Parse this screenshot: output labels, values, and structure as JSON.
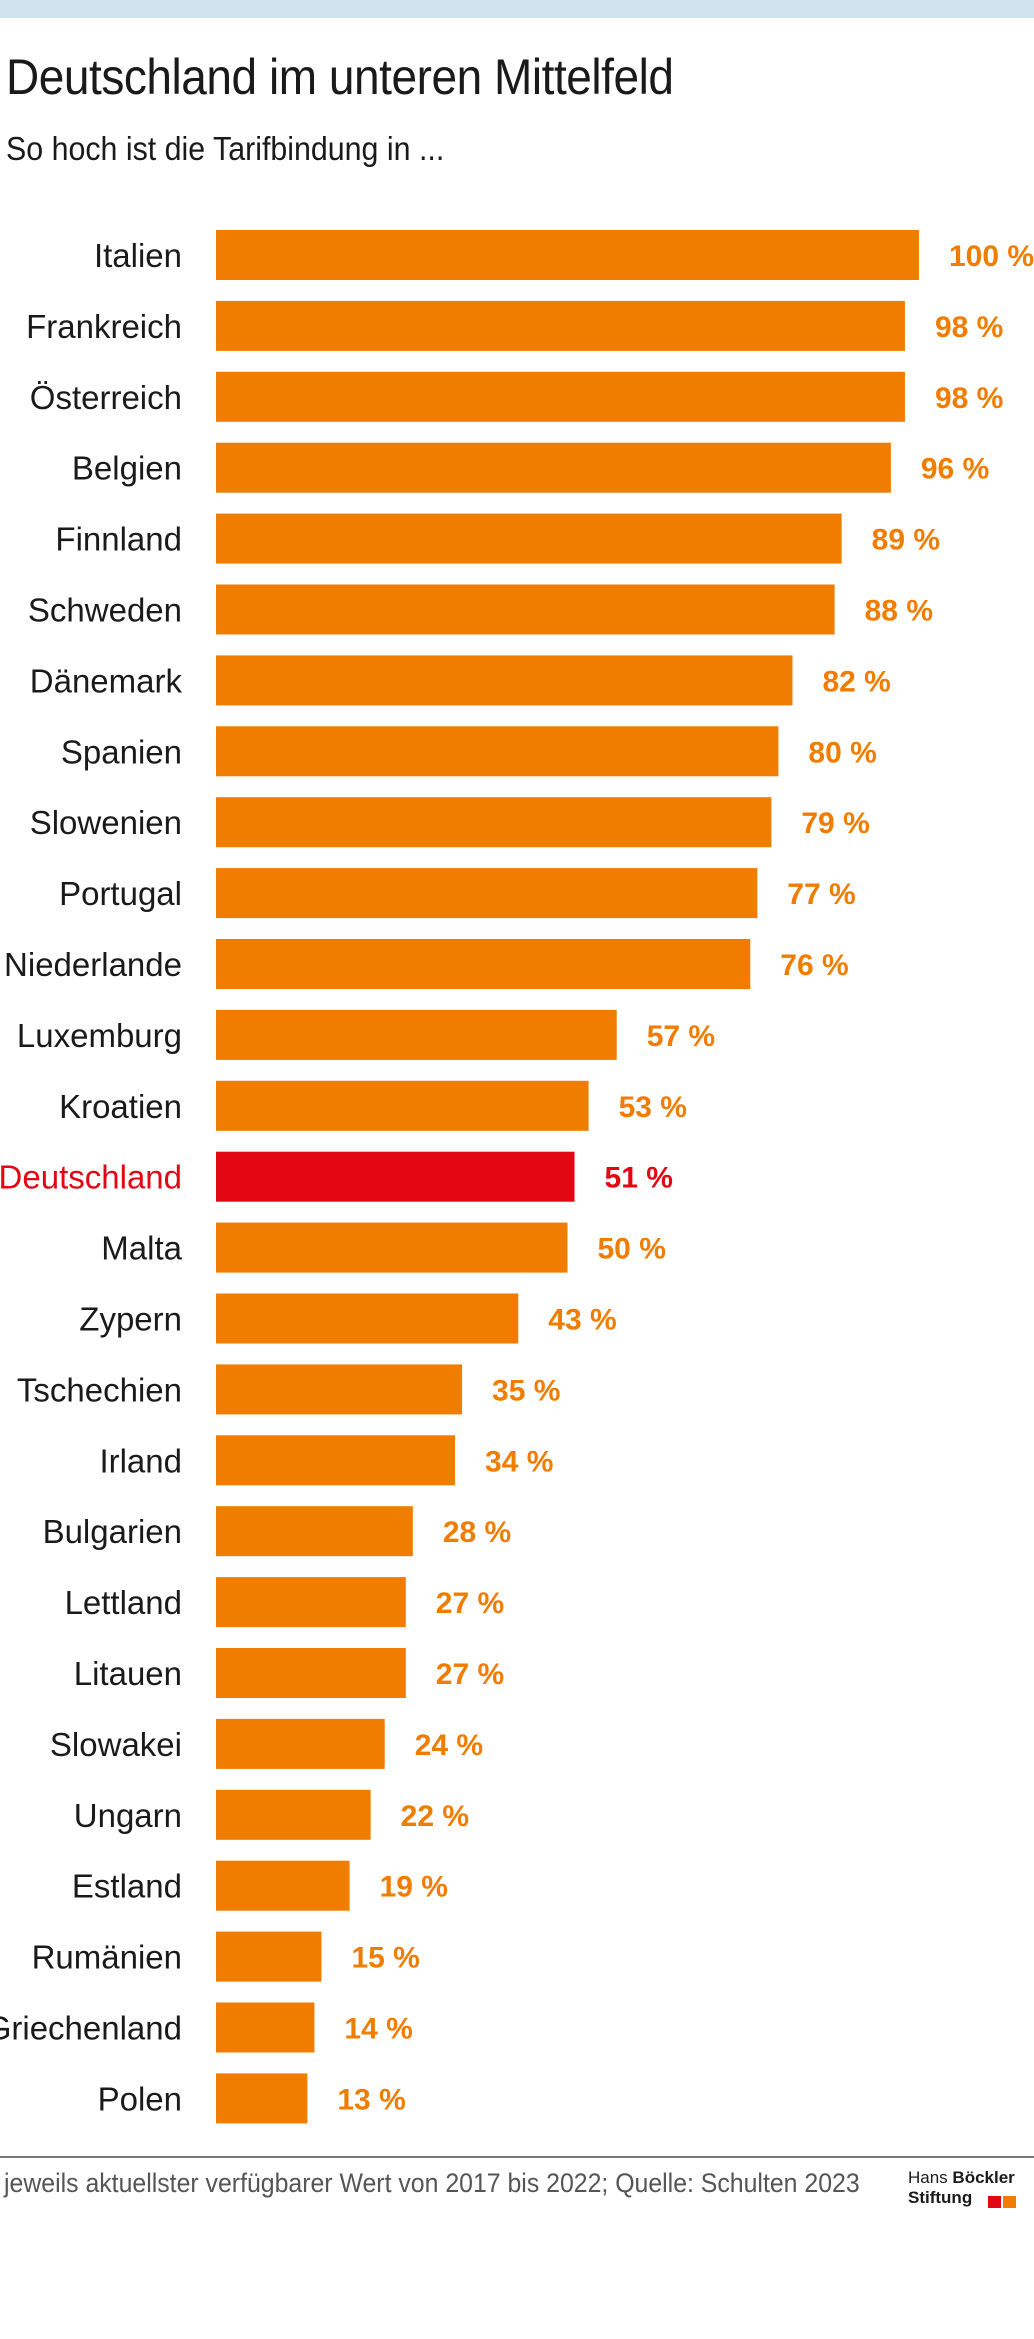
{
  "header": {
    "title": "Deutschland im unteren Mittelfeld",
    "subtitle": "So hoch ist die Tarifbindung in ..."
  },
  "footer": {
    "source": "jeweils aktuellster verfügbarer Wert von 2017 bis 2022; Quelle: Schulten 2023"
  },
  "logo": {
    "line1_regular": "Hans",
    "line1_bold": "Böckler",
    "line2": "Stiftung",
    "colors": [
      "#e30613",
      "#f07d00"
    ]
  },
  "colors": {
    "bar": "#f07d00",
    "highlight": "#e30613",
    "label": "#1a1a1a",
    "topbar": "#cfe3ef"
  },
  "chart_data": {
    "type": "bar",
    "orientation": "horizontal",
    "title": "Deutschland im unteren Mittelfeld",
    "subtitle": "So hoch ist die Tarifbindung in ...",
    "unit": "%",
    "highlight": "Deutschland",
    "categories": [
      "Italien",
      "Frankreich",
      "Österreich",
      "Belgien",
      "Finnland",
      "Schweden",
      "Dänemark",
      "Spanien",
      "Slowenien",
      "Portugal",
      "Niederlande",
      "Luxemburg",
      "Kroatien",
      "Deutschland",
      "Malta",
      "Zypern",
      "Tschechien",
      "Irland",
      "Bulgarien",
      "Lettland",
      "Litauen",
      "Slowakei",
      "Ungarn",
      "Estland",
      "Rumänien",
      "Griechenland",
      "Polen"
    ],
    "values": [
      100,
      98,
      98,
      96,
      89,
      88,
      82,
      80,
      79,
      77,
      76,
      57,
      53,
      51,
      50,
      43,
      35,
      34,
      28,
      27,
      27,
      24,
      22,
      19,
      15,
      14,
      13
    ],
    "value_labels": [
      "100 %",
      "98 %",
      "98 %",
      "96 %",
      "89 %",
      "88 %",
      "82 %",
      "80 %",
      "79 %",
      "77 %",
      "76 %",
      "57 %",
      "53 %",
      "51 %",
      "50 %",
      "43 %",
      "35 %",
      "34 %",
      "28 %",
      "27 %",
      "27 %",
      "24 %",
      "22 %",
      "19 %",
      "15 %",
      "14 %",
      "13 %"
    ],
    "xlim": [
      0,
      100
    ],
    "grid": false,
    "legend": "none"
  }
}
